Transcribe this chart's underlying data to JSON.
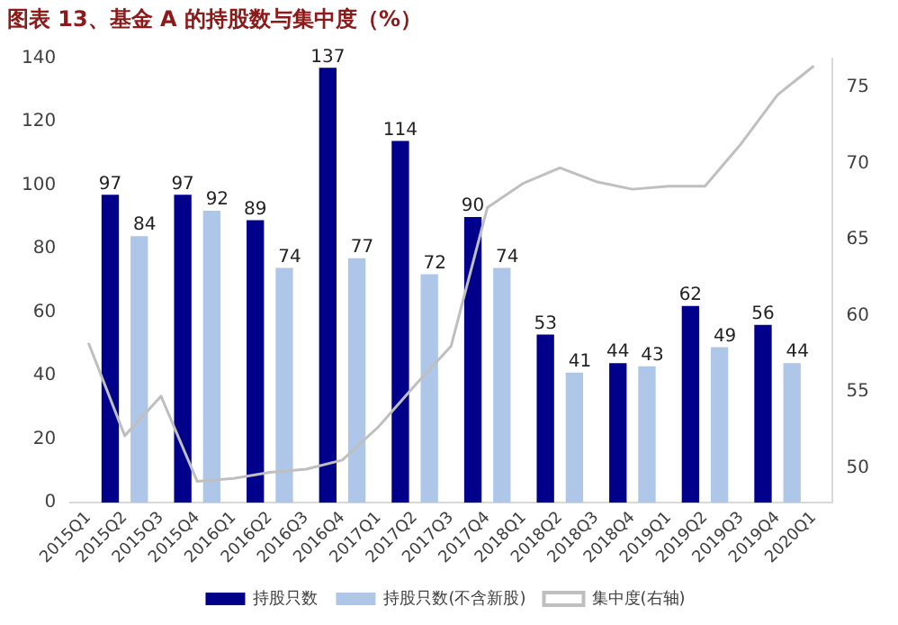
{
  "chart_data": {
    "type": "bar",
    "title": "图表 13、基金 A 的持股数与集中度（%）",
    "categories": [
      "2015Q1",
      "2015Q2",
      "2015Q3",
      "2015Q4",
      "2016Q1",
      "2016Q2",
      "2016Q3",
      "2016Q4",
      "2017Q1",
      "2017Q2",
      "2017Q3",
      "2017Q4",
      "2018Q1",
      "2018Q2",
      "2018Q3",
      "2018Q4",
      "2019Q1",
      "2019Q2",
      "2019Q3",
      "2019Q4",
      "2020Q1"
    ],
    "series": [
      {
        "name": "持股只数",
        "color": "#00008b",
        "values": [
          null,
          97,
          null,
          97,
          null,
          89,
          null,
          137,
          null,
          114,
          null,
          90,
          null,
          53,
          null,
          44,
          null,
          62,
          null,
          56,
          null
        ],
        "value_labels": [
          null,
          "97",
          null,
          "97",
          null,
          "89",
          null,
          "137",
          null,
          "114",
          null,
          "90",
          null,
          "53",
          null,
          "44",
          null,
          "62",
          null,
          "56",
          null
        ]
      },
      {
        "name": "持股只数(不含新股)",
        "color": "#aec7e8",
        "values": [
          null,
          84,
          null,
          92,
          null,
          74,
          null,
          77,
          null,
          72,
          null,
          74,
          null,
          41,
          null,
          43,
          null,
          49,
          null,
          44,
          null
        ],
        "value_labels": [
          null,
          "84",
          null,
          "92",
          null,
          "74",
          null,
          "77",
          null,
          "72",
          null,
          "74",
          null,
          "41",
          null,
          "43",
          null,
          "49",
          null,
          "44",
          null
        ]
      },
      {
        "name": "集中度(右轴)",
        "type": "line",
        "axis": "y2",
        "color": "#bfbfbf",
        "values": [
          58.2,
          52.1,
          54.7,
          49.1,
          49.3,
          49.7,
          49.9,
          50.5,
          52.7,
          55.4,
          58.0,
          67.1,
          68.7,
          69.7,
          68.8,
          68.3,
          68.5,
          68.5,
          71.3,
          74.5,
          76.4
        ]
      }
    ],
    "ylim": [
      0,
      140
    ],
    "yticks": [
      0,
      20,
      40,
      60,
      80,
      100,
      120,
      140
    ],
    "y2lim": [
      47.7,
      76.9
    ],
    "y2ticks": [
      50,
      55,
      60,
      65,
      70,
      75
    ],
    "grid": false,
    "legend": "bottom",
    "marker": "none"
  }
}
